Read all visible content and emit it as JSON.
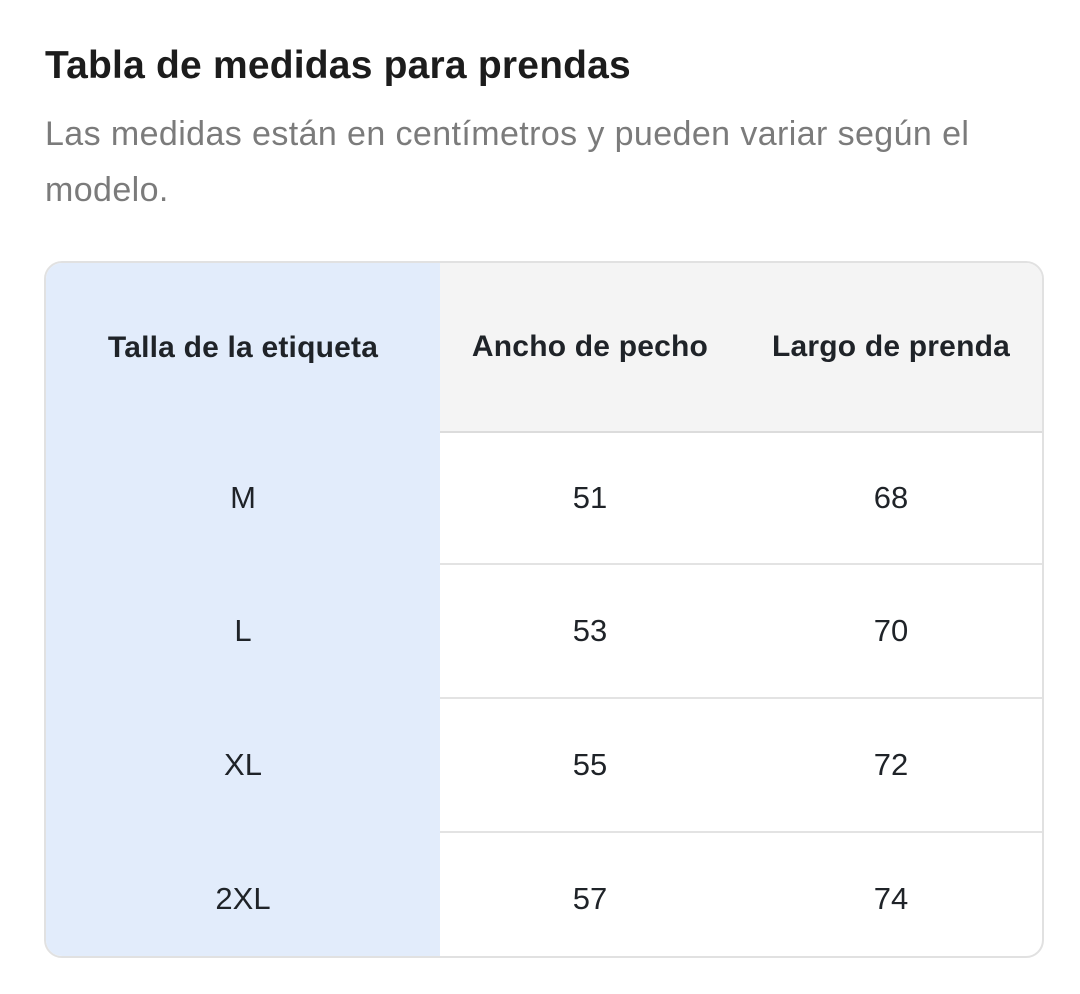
{
  "header": {
    "title": "Tabla de medidas para prendas",
    "subtitle": "Las medidas están en centímetros y pueden variar según el modelo."
  },
  "size_table": {
    "columns": [
      "Talla de la etiqueta",
      "Ancho de pecho",
      "Largo de prenda"
    ],
    "rows": [
      {
        "size": "M",
        "chest_width": "51",
        "garment_length": "68"
      },
      {
        "size": "L",
        "chest_width": "53",
        "garment_length": "70"
      },
      {
        "size": "XL",
        "chest_width": "55",
        "garment_length": "72"
      },
      {
        "size": "2XL",
        "chest_width": "57",
        "garment_length": "74"
      }
    ]
  },
  "colors": {
    "size_column_bg": "#e2ecfb",
    "header_bg": "#f4f4f4",
    "border": "#e1e1e1",
    "subtitle_text": "#7b7b7b"
  }
}
